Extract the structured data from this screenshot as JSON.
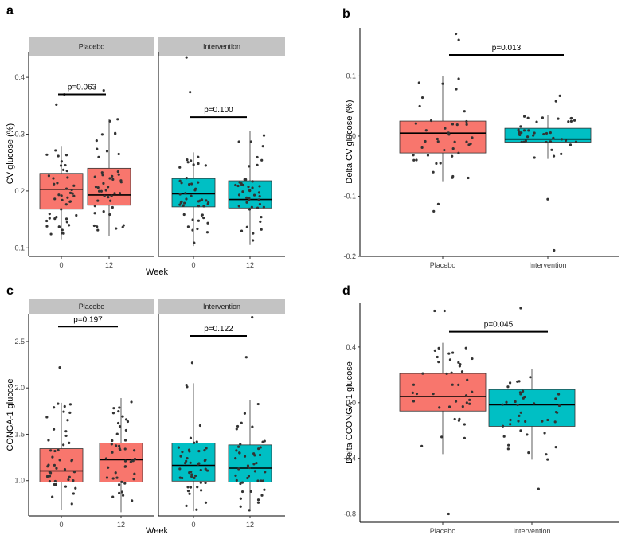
{
  "colors": {
    "placebo": "#F8766D",
    "intervention": "#00BFC4",
    "strip": "#C3C3C3",
    "point": "#333333"
  },
  "chart_data": [
    {
      "id": "a",
      "type": "box",
      "panel_letter": "a",
      "ylabel": "CV glucose (%)",
      "xlabel": "Week",
      "ylim": [
        0.085,
        0.445
      ],
      "yticks": [
        0.1,
        0.2,
        0.3,
        0.4
      ],
      "ytick_labels": [
        "0.1",
        "0.2",
        "0.3",
        "0.4"
      ],
      "facets": [
        {
          "strip": "Placebo",
          "group": "placebo",
          "categories": [
            "0",
            "12"
          ],
          "boxes": [
            {
              "q1": 0.168,
              "median": 0.203,
              "q3": 0.231,
              "low": 0.115,
              "high": 0.278,
              "n": 45,
              "outliers": [
                0.352,
                0.37
              ]
            },
            {
              "q1": 0.175,
              "median": 0.193,
              "q3": 0.24,
              "low": 0.12,
              "high": 0.327,
              "n": 45,
              "outliers": [
                0.377
              ]
            }
          ],
          "sig": {
            "label": "p=0.063",
            "y": 0.37
          }
        },
        {
          "strip": "Intervention",
          "group": "intervention",
          "categories": [
            "0",
            "12"
          ],
          "boxes": [
            {
              "q1": 0.172,
              "median": 0.195,
              "q3": 0.222,
              "low": 0.103,
              "high": 0.268,
              "n": 45,
              "outliers": [
                0.374,
                0.435
              ]
            },
            {
              "q1": 0.17,
              "median": 0.185,
              "q3": 0.218,
              "low": 0.105,
              "high": 0.305,
              "n": 45,
              "outliers": []
            }
          ],
          "sig": {
            "label": "p=0.100",
            "y": 0.33
          }
        }
      ]
    },
    {
      "id": "b",
      "type": "box",
      "panel_letter": "b",
      "ylabel": "Delta CV glucose (%)",
      "xlabel": "",
      "ylim": [
        -0.2,
        0.18
      ],
      "yticks": [
        -0.2,
        -0.1,
        0.0,
        0.1
      ],
      "ytick_labels": [
        "-0.2",
        "-0.1",
        "0.0",
        "0.1"
      ],
      "facets": [
        {
          "strip": "",
          "group": "mixed",
          "categories": [
            "Placebo",
            "Intervention"
          ],
          "boxes": [
            {
              "group": "placebo",
              "q1": -0.028,
              "median": 0.005,
              "q3": 0.025,
              "low": -0.075,
              "high": 0.1,
              "n": 40,
              "outliers": [
                0.16,
                0.17,
                -0.113,
                -0.125
              ]
            },
            {
              "group": "intervention",
              "q1": -0.01,
              "median": -0.005,
              "q3": 0.013,
              "low": -0.038,
              "high": 0.035,
              "n": 40,
              "outliers": [
                0.058,
                0.067,
                -0.105,
                -0.19
              ]
            }
          ],
          "sig": {
            "label": "p=0.013",
            "y": 0.135
          }
        }
      ]
    },
    {
      "id": "c",
      "type": "box",
      "panel_letter": "c",
      "ylabel": "CONGA-1 glucose",
      "xlabel": "Week",
      "ylim": [
        0.62,
        2.8
      ],
      "yticks": [
        1.0,
        1.5,
        2.0,
        2.5
      ],
      "ytick_labels": [
        "1.0",
        "1.5",
        "2.0",
        "2.5"
      ],
      "facets": [
        {
          "strip": "Placebo",
          "group": "placebo",
          "categories": [
            "0",
            "12"
          ],
          "boxes": [
            {
              "q1": 0.985,
              "median": 1.105,
              "q3": 1.345,
              "low": 0.68,
              "high": 1.84,
              "n": 45,
              "outliers": [
                2.22
              ]
            },
            {
              "q1": 0.985,
              "median": 1.225,
              "q3": 1.405,
              "low": 0.66,
              "high": 1.89,
              "n": 45,
              "outliers": []
            }
          ],
          "sig": {
            "label": "p=0.197",
            "y": 2.66
          }
        },
        {
          "strip": "Intervention",
          "group": "intervention",
          "categories": [
            "0",
            "12"
          ],
          "boxes": [
            {
              "q1": 0.995,
              "median": 1.165,
              "q3": 1.405,
              "low": 0.67,
              "high": 2.05,
              "n": 45,
              "outliers": [
                2.27
              ]
            },
            {
              "q1": 0.985,
              "median": 1.135,
              "q3": 1.385,
              "low": 0.67,
              "high": 1.87,
              "n": 45,
              "outliers": [
                2.33,
                2.76
              ]
            }
          ],
          "sig": {
            "label": "p=0.122",
            "y": 2.56
          }
        }
      ]
    },
    {
      "id": "d",
      "type": "box",
      "panel_letter": "d",
      "ylabel": "Delta CCONGA-1 glucose",
      "xlabel": "",
      "ylim": [
        -0.86,
        0.72
      ],
      "yticks": [
        -0.8,
        -0.4,
        0.0,
        0.4
      ],
      "ytick_labels": [
        "-0.8",
        "-0.4",
        "0.0",
        "0.4"
      ],
      "facets": [
        {
          "strip": "",
          "group": "mixed",
          "categories": [
            "Placebo",
            "Intervention"
          ],
          "boxes": [
            {
              "group": "placebo",
              "q1": -0.06,
              "median": 0.045,
              "q3": 0.21,
              "low": -0.37,
              "high": 0.43,
              "n": 40,
              "outliers": [
                0.66,
                0.66,
                -0.8
              ]
            },
            {
              "group": "intervention",
              "q1": -0.17,
              "median": -0.015,
              "q3": 0.095,
              "low": -0.41,
              "high": 0.24,
              "n": 40,
              "outliers": [
                0.68,
                -0.62
              ]
            }
          ],
          "sig": {
            "label": "p=0.045",
            "y": 0.51
          }
        }
      ]
    }
  ]
}
